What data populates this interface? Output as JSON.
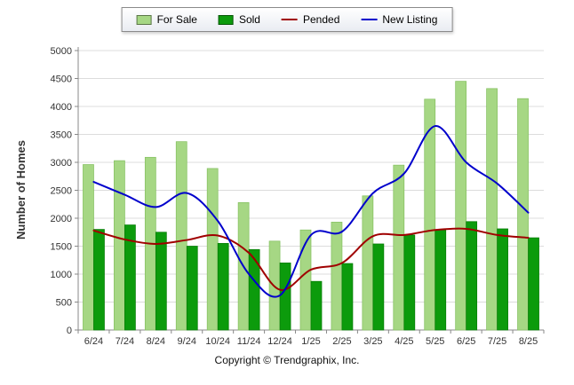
{
  "chart_data": {
    "type": "combo",
    "title": "",
    "ylabel": "Number of Homes",
    "ylim": [
      0,
      5000
    ],
    "ytick_step": 500,
    "grid": true,
    "legend_position": "top",
    "categories": [
      "6/24",
      "7/24",
      "8/24",
      "9/24",
      "10/24",
      "11/24",
      "12/24",
      "1/25",
      "2/25",
      "3/25",
      "4/25",
      "5/25",
      "6/25",
      "7/25",
      "8/25"
    ],
    "series": [
      {
        "name": "For Sale",
        "type": "bar",
        "color": "#a6d784",
        "values": [
          2960,
          3030,
          3090,
          3370,
          2890,
          2280,
          1590,
          1790,
          1930,
          2400,
          2950,
          4130,
          4450,
          4320,
          4140
        ]
      },
      {
        "name": "Sold",
        "type": "bar",
        "color": "#0c9b0c",
        "values": [
          1800,
          1880,
          1750,
          1500,
          1550,
          1440,
          1200,
          870,
          1190,
          1540,
          1700,
          1790,
          1940,
          1810,
          1650
        ]
      },
      {
        "name": "Pended",
        "type": "line",
        "color": "#a00000",
        "values": [
          1780,
          1620,
          1540,
          1610,
          1690,
          1380,
          720,
          1080,
          1200,
          1680,
          1700,
          1790,
          1810,
          1700,
          1650
        ]
      },
      {
        "name": "New Listing",
        "type": "line",
        "color": "#0000cc",
        "values": [
          2650,
          2420,
          2200,
          2450,
          1950,
          1000,
          620,
          1700,
          1760,
          2450,
          2800,
          3650,
          3000,
          2620,
          2100
        ]
      }
    ]
  },
  "footer": {
    "copyright": "Copyright © Trendgraphix, Inc."
  }
}
